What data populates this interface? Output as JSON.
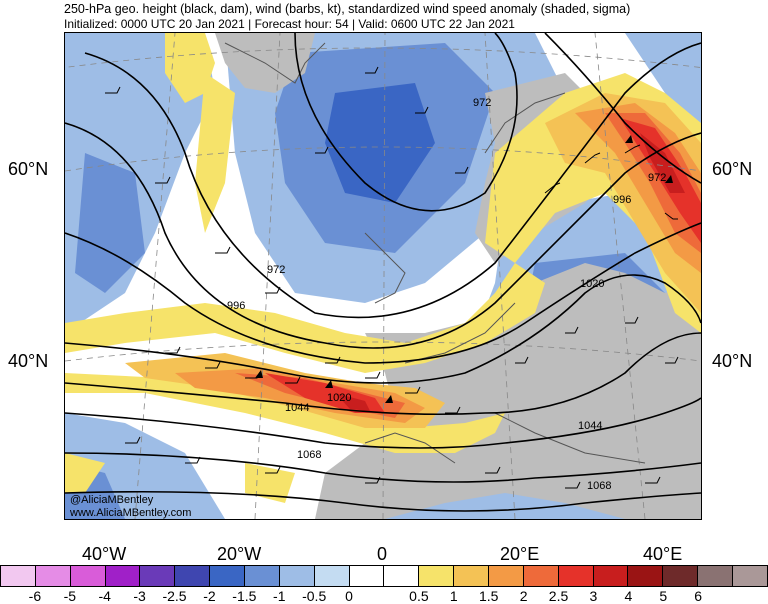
{
  "title": {
    "line1": "250-hPa geo. height (black, dam), wind (barbs, kt), standardized wind speed anomaly (shaded, sigma)",
    "line2": "Initialized: 0000 UTC 20 Jan 2021 | Forecast hour: 54 | Valid: 0600 UTC 22 Jan 2021"
  },
  "lat_labels": [
    "60°N",
    "40°N"
  ],
  "lon_labels": [
    "40°W",
    "20°W",
    "0",
    "20°E",
    "40°E"
  ],
  "contour_labels": [
    "972",
    "972",
    "996",
    "996",
    "972",
    "1020",
    "1044",
    "1068",
    "1020",
    "1044",
    "1068"
  ],
  "credit": {
    "handle": "@AliciaMBentley",
    "site": "www.AliciaMBentley.com"
  },
  "colorbar": {
    "colors": [
      "#f2c8f0",
      "#e58ce6",
      "#d95cd9",
      "#a020c8",
      "#6a3ab8",
      "#3f46b0",
      "#3a66c4",
      "#6a90d4",
      "#9ebde6",
      "#c4dcf2",
      "#ffffff",
      "#ffffff",
      "#f6e36a",
      "#f4c255",
      "#f39a45",
      "#ee6a3a",
      "#e5322a",
      "#c81e1e",
      "#9a1414",
      "#6e2a2a",
      "#8a7272",
      "#aa9898"
    ],
    "tick_labels": [
      "-6",
      "-5",
      "-4",
      "-3",
      "-2.5",
      "-2",
      "-1.5",
      "-1",
      "-0.5",
      "0",
      "0.5",
      "1",
      "1.5",
      "2",
      "2.5",
      "3",
      "4",
      "5",
      "6"
    ]
  }
}
